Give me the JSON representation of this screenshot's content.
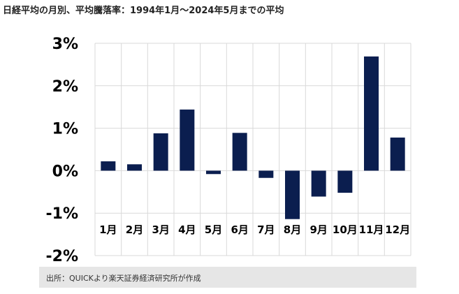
{
  "title": "日経平均の月別、平均騰落率：1994年1月〜2024年5月までの平均",
  "source": "出所：QUICKより楽天証券経済研究所が作成",
  "colors": {
    "bar": "#0b1e4f",
    "grid": "#d9d9d9",
    "axis": "#bfbfbf"
  },
  "chart_data": {
    "type": "bar",
    "title": "日経平均の月別、平均騰落率：1994年1月〜2024年5月までの平均",
    "categories": [
      "1月",
      "2月",
      "3月",
      "4月",
      "5月",
      "6月",
      "7月",
      "8月",
      "9月",
      "10月",
      "11月",
      "12月"
    ],
    "values": [
      0.22,
      0.15,
      0.88,
      1.44,
      -0.08,
      0.89,
      -0.17,
      -1.14,
      -0.61,
      -0.52,
      2.69,
      0.78
    ],
    "unit": "%",
    "ylim": [
      -2,
      3
    ],
    "yticks": [
      3,
      2,
      1,
      0,
      -1,
      -2
    ],
    "ytick_labels": [
      "3%",
      "2%",
      "1%",
      "0%",
      "-1%",
      "-2%"
    ],
    "xlabel": "",
    "ylabel": "",
    "grid": true,
    "legend": "none"
  }
}
